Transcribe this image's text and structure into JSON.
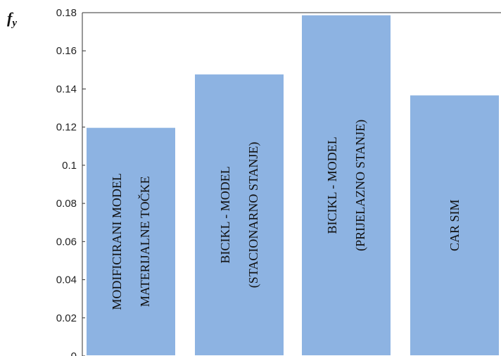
{
  "chart_data": {
    "type": "bar",
    "ylabel_main": "f",
    "ylabel_sub": "y",
    "ylim": [
      0,
      0.18
    ],
    "yticks": [
      "0",
      "0.02",
      "0.04",
      "0.06",
      "0.08",
      "0.1",
      "0.12",
      "0.14",
      "0.16",
      "0.18"
    ],
    "categories": [
      {
        "lines": [
          "MODIFICIRANI MODEL",
          "MATERIJALNE TOČKE"
        ],
        "value": 0.12
      },
      {
        "lines": [
          "BICIKL - MODEL",
          "(STACIONARNO STANJE)"
        ],
        "value": 0.148
      },
      {
        "lines": [
          "BICIKL - MODEL",
          "(PRIJELAZNO STANJE)"
        ],
        "value": 0.179
      },
      {
        "lines": [
          "CAR SIM"
        ],
        "value": 0.137
      }
    ],
    "bar_color": "#8db3e2",
    "grid": false,
    "legend": "none"
  }
}
